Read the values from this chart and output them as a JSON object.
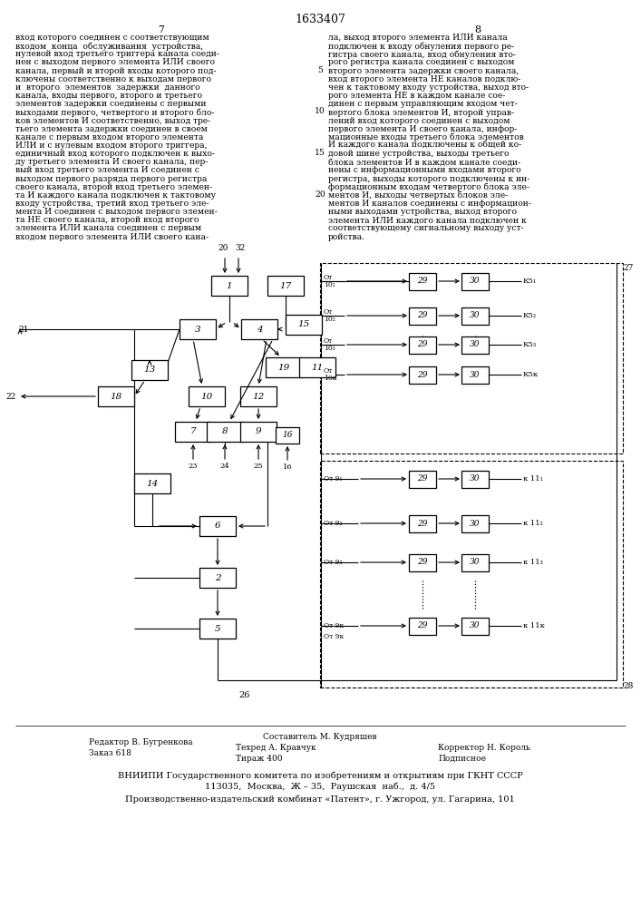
{
  "title": "1633407",
  "page_left": "7",
  "page_right": "8",
  "bg_color": "#ffffff",
  "text_color": "#000000",
  "left_col_lines": [
    "вход которого соединен с соответствующим",
    "входом  конца  обслуживания  устройства,",
    "нулевой вход третьего триггера канала соеди-",
    "нен с выходом первого элемента ИЛИ своего",
    "канала, первый и второй входы которого под-",
    "ключены соответственно к выходам первого",
    "и  второго  элементов  задержки  данного",
    "канала, входы первого, второго и третьего",
    "элементов задержки соединены с первыми",
    "выходами первого, четвертого и второго бло-",
    "ков элементов И соответственно, выход тре-",
    "тьего элемента задержки соединен в своем",
    "канале с первым входом второго элемента",
    "ИЛИ и с нулевым входом второго триггера,",
    "единичный вход которого подключен к выхо-",
    "ду третьего элемента И своего канала, пер-",
    "вый вход третьего элемента И соединен с",
    "выходом первого разряда первого регистра",
    "своего канала, второй вход третьего элемен-",
    "та И каждого канала подключен к тактовому",
    "входу устройства, третий вход третьего эле-",
    "мента И соединен с выходом первого элемен-",
    "та НЕ своего канала, второй вход второго",
    "элемента ИЛИ канала соединен с первым",
    "входом первого элемента ИЛИ своего кана-"
  ],
  "right_col_lines": [
    "ла, выход второго элемента ИЛИ канала",
    "подключен к входу обнуления первого ре-",
    "гистра своего канала, вход обнуления вто-",
    "рого регистра канала соединен с выходом",
    "второго элемента задержки своего канала,",
    "вход второго элемента НЕ каналов подклю-",
    "чен к тактовому входу устройства, выход вто-",
    "рого элемента НЕ в каждом канале сое-",
    "динен с первым управляющим входом чет-",
    "вертого блока элементов И, второй управ-",
    "лений вход которого соединен с выходом",
    "первого элемента И своего канала, инфор-",
    "мационные входы третьего блока элементов",
    "И каждого канала подключены к общей ко-",
    "довой шине устройства, выходы третьего",
    "блока элементов И в каждом канале соеди-",
    "нены с информационными входами второго",
    "регистра, выходы которого подключены к ин-",
    "формационным входам четвертого блока эле-",
    "ментов И, выходы четвертых блоков эле-",
    "ментов И каналов соединены с информацион-",
    "ными выходами устройства, выход второго",
    "элемента ИЛИ каждого канала подключен к",
    "соответствующему сигнальному выходу уст-",
    "ройства."
  ],
  "line_numbers": [
    [
      5,
      4
    ],
    [
      10,
      9
    ],
    [
      15,
      14
    ],
    [
      20,
      19
    ]
  ],
  "footer_editor": "Редактор В. Бугренкова",
  "footer_order": "Заказ 618",
  "footer_composer": "Составитель М. Кудряшев",
  "footer_tech": "Техред А. Кравчук",
  "footer_tirazh": "Тираж 400",
  "footer_corrector": "Корректор Н. Король",
  "footer_podp": "Подписное",
  "footer_vniip1": "ВНИИПИ Государственного комитета по изобретениям и открытиям при ГКНТ СССР",
  "footer_vniip2": "113035,  Москва,  Ж – 35,  Раушская  наб.,  д. 4/5",
  "footer_vniip3": "Производственно-издательский комбинат «Патент», г. Ужгород, ул. Гагарина, 101"
}
